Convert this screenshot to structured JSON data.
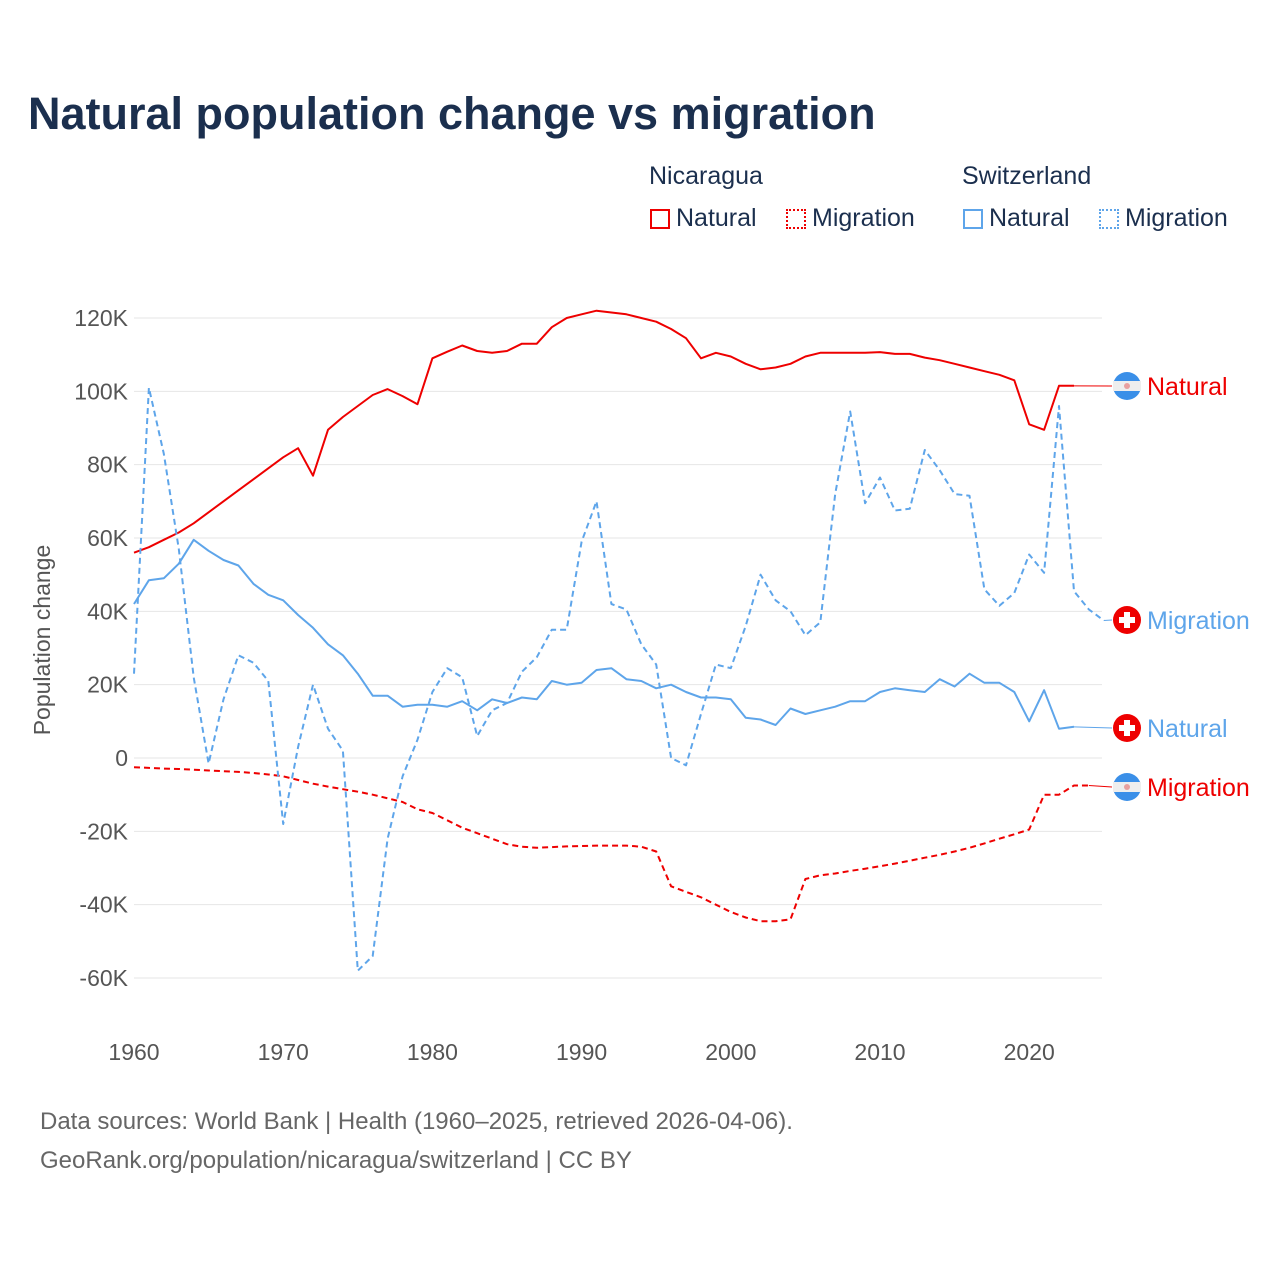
{
  "chart_data": {
    "type": "line",
    "title": "Natural population change vs migration",
    "xlabel": "",
    "ylabel": "Population change",
    "ylim": [
      -70000,
      125000
    ],
    "xlim": [
      1960,
      2025
    ],
    "yticks": [
      -60000,
      -40000,
      -20000,
      0,
      20000,
      40000,
      60000,
      80000,
      100000,
      120000
    ],
    "ytick_labels": [
      "-60K",
      "-40K",
      "-20K",
      "0",
      "20K",
      "40K",
      "60K",
      "80K",
      "100K",
      "120K"
    ],
    "xticks": [
      1960,
      1970,
      1980,
      1990,
      2000,
      2010,
      2020
    ],
    "xtick_labels": [
      "1960",
      "1970",
      "1980",
      "1990",
      "2000",
      "2010",
      "2020"
    ],
    "grid": true,
    "legend_groups": [
      {
        "country": "Nicaragua",
        "items": [
          {
            "label": "Natural",
            "style": "solid",
            "color": "#ee0000"
          },
          {
            "label": "Migration",
            "style": "dotted",
            "color": "#ee0000"
          }
        ]
      },
      {
        "country": "Switzerland",
        "items": [
          {
            "label": "Natural",
            "style": "solid",
            "color": "#5ea5ea"
          },
          {
            "label": "Migration",
            "style": "dotted",
            "color": "#5ea5ea"
          }
        ]
      }
    ],
    "series": [
      {
        "name": "Nicaragua Natural",
        "end_label": "Natural",
        "flag": "nicaragua-flag",
        "color": "#ee0000",
        "dash": false,
        "x_start": 1960,
        "values": [
          56000,
          57500,
          59500,
          61500,
          64000,
          67000,
          70000,
          73000,
          76000,
          79000,
          82000,
          84500,
          77000,
          89500,
          93000,
          96000,
          99000,
          100600,
          98700,
          96500,
          109000,
          110800,
          112500,
          111000,
          110500,
          111000,
          113000,
          113000,
          117500,
          120000,
          121000,
          122000,
          121500,
          121000,
          120000,
          119000,
          117000,
          114500,
          109000,
          110500,
          109500,
          107500,
          106000,
          106500,
          107500,
          109500,
          110500,
          110500,
          110500,
          110500,
          110700,
          110200,
          110200,
          109200,
          108500,
          107500,
          106500,
          105500,
          104500,
          103000,
          91000,
          89500,
          101500,
          101500
        ]
      },
      {
        "name": "Nicaragua Migration",
        "end_label": "Migration",
        "flag": "nicaragua-flag",
        "color": "#ee0000",
        "dash": true,
        "x_start": 1960,
        "values": [
          -2500,
          -2700,
          -2900,
          -3000,
          -3200,
          -3400,
          -3600,
          -3800,
          -4100,
          -4500,
          -5000,
          -6000,
          -7000,
          -7800,
          -8500,
          -9200,
          -10000,
          -11000,
          -12000,
          -14000,
          -15000,
          -17000,
          -19000,
          -20500,
          -22000,
          -23500,
          -24200,
          -24500,
          -24300,
          -24100,
          -24000,
          -23900,
          -23900,
          -23900,
          -24200,
          -25500,
          -35000,
          -36500,
          -38000,
          -40000,
          -42000,
          -43500,
          -44500,
          -44500,
          -44000,
          -33000,
          -32000,
          -31500,
          -30800,
          -30200,
          -29500,
          -28800,
          -28000,
          -27200,
          -26400,
          -25500,
          -24500,
          -23300,
          -22000,
          -20800,
          -19500,
          -10000,
          -10000,
          -7500,
          -7500
        ]
      },
      {
        "name": "Switzerland Natural",
        "end_label": "Natural",
        "flag": "switzerland-flag",
        "color": "#5ea5ea",
        "dash": false,
        "x_start": 1960,
        "values": [
          42000,
          48500,
          49000,
          53000,
          59500,
          56500,
          54000,
          52500,
          47500,
          44500,
          43000,
          39000,
          35500,
          31000,
          28000,
          23000,
          17000,
          17000,
          14000,
          14500,
          14500,
          14000,
          15500,
          13000,
          16000,
          15000,
          16500,
          16000,
          21000,
          20000,
          20500,
          24000,
          24500,
          21500,
          21000,
          19000,
          20000,
          18000,
          16500,
          16500,
          16000,
          11000,
          10500,
          9000,
          13500,
          12000,
          13000,
          14000,
          15500,
          15500,
          18000,
          19000,
          18500,
          18000,
          21500,
          19500,
          23000,
          20500,
          20500,
          18000,
          10000,
          18500,
          8000,
          8500
        ]
      },
      {
        "name": "Switzerland Migration",
        "end_label": "Migration",
        "flag": "switzerland-flag",
        "color": "#5ea5ea",
        "dash": true,
        "x_start": 1960,
        "values": [
          23000,
          101000,
          83000,
          57000,
          22000,
          -1500,
          16000,
          28000,
          26000,
          21000,
          -18000,
          3000,
          20000,
          8000,
          2000,
          -58000,
          -54000,
          -22000,
          -5000,
          5000,
          18000,
          24500,
          22000,
          6000,
          13000,
          15000,
          23500,
          27500,
          35000,
          35000,
          59000,
          70000,
          42000,
          40500,
          31000,
          25500,
          0,
          -2000,
          12000,
          25500,
          24500,
          36000,
          50000,
          43000,
          40000,
          33500,
          37000,
          72000,
          94500,
          69500,
          76500,
          67500,
          68000,
          84000,
          78500,
          72000,
          71500,
          46000,
          41500,
          45000,
          55500,
          50500,
          96000,
          45500,
          40500,
          37500
        ]
      }
    ]
  },
  "footer": {
    "line1": "Data sources: World Bank | Health (1960–2025, retrieved 2026-04-06).",
    "line2": "GeoRank.org/population/nicaragua/switzerland | CC BY"
  }
}
